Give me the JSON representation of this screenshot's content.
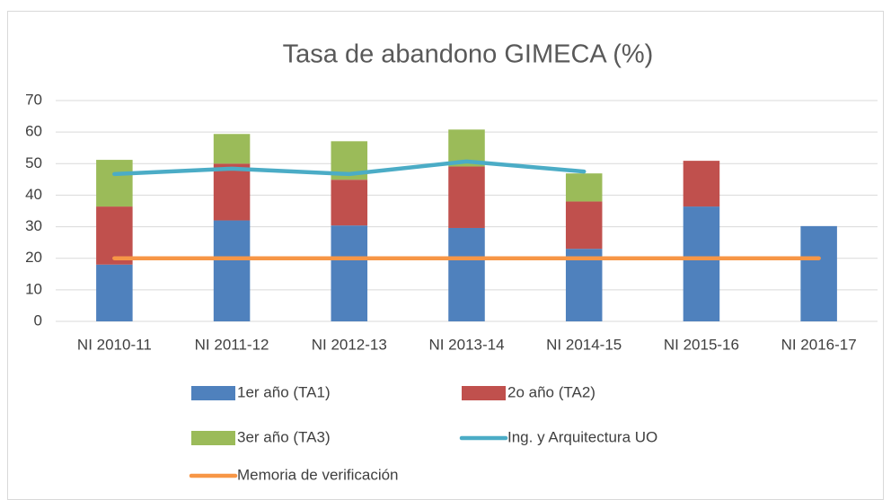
{
  "chart_data": {
    "type": "bar",
    "stacked": true,
    "title": "Tasa de abandono GIMECA (%)",
    "categories": [
      "NI 2010-11",
      "NI 2011-12",
      "NI 2012-13",
      "NI 2013-14",
      "NI 2014-15",
      "NI 2015-16",
      "NI 2016-17"
    ],
    "series": [
      {
        "name": "1er año (TA1)",
        "type": "bar",
        "color": "#4f81bd",
        "values": [
          18,
          32,
          30.4,
          29.6,
          23,
          36.4,
          30.2
        ]
      },
      {
        "name": "2o año (TA2)",
        "type": "bar",
        "color": "#c0504d",
        "values": [
          18.4,
          18,
          14.5,
          19.5,
          15,
          14.5,
          null
        ]
      },
      {
        "name": "3er año (TA3)",
        "type": "bar",
        "color": "#9bbb59",
        "values": [
          14.8,
          9.4,
          12.2,
          11.7,
          8.9,
          null,
          null
        ]
      },
      {
        "name": "Ing. y Arquitectura UO",
        "type": "line",
        "color": "#4bacc6",
        "values": [
          46.7,
          48.4,
          46.7,
          50.7,
          47.5,
          null,
          null
        ]
      },
      {
        "name": "Memoria de verificación",
        "type": "line",
        "color": "#f79646",
        "values": [
          20,
          20,
          20,
          20,
          20,
          20,
          20
        ]
      }
    ],
    "ylim": [
      0,
      70
    ],
    "yticks": [
      0,
      10,
      20,
      30,
      40,
      50,
      60,
      70
    ],
    "grid": true,
    "legend": "bottom"
  }
}
